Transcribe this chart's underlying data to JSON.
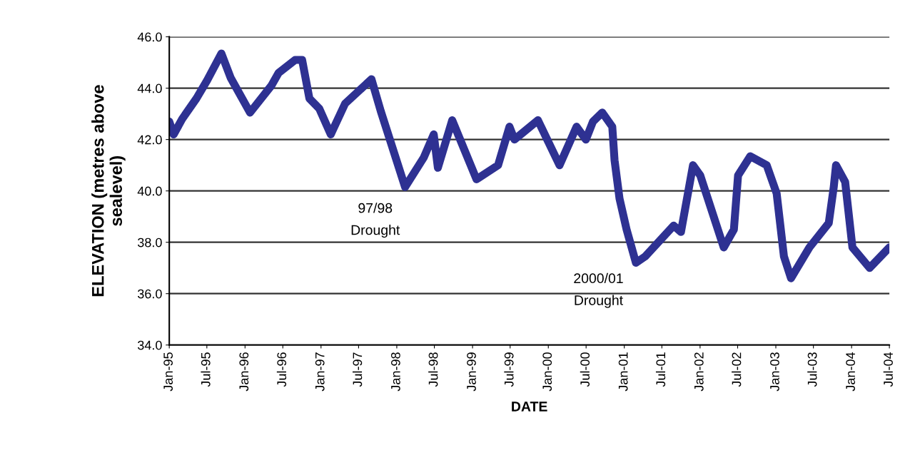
{
  "chart_data": {
    "type": "line",
    "xlabel": "DATE",
    "ylabel": "ELEVATION (metres above\nsealevel)",
    "x": [
      "1995-01-01",
      "1995-01-22",
      "1995-03-04",
      "1995-05-12",
      "1995-07-02",
      "1995-09-09",
      "1995-10-24",
      "1996-01-25",
      "1996-05-07",
      "1996-06-11",
      "1996-08-29",
      "1996-10-02",
      "1996-11-06",
      "1996-12-24",
      "1997-02-17",
      "1997-04-27",
      "1997-09-01",
      "1997-10-16",
      "1998-02-10",
      "1998-05-11",
      "1998-06-28",
      "1998-07-18",
      "1998-09-25",
      "1999-01-20",
      "1999-05-04",
      "1999-06-28",
      "1999-07-22",
      "1999-11-12",
      "2000-02-24",
      "2000-05-16",
      "2000-06-30",
      "2000-08-03",
      "2000-09-17",
      "2000-11-04",
      "2000-11-15",
      "2000-12-09",
      "2001-01-12",
      "2001-02-26",
      "2001-04-12",
      "2001-08-27",
      "2001-10-01",
      "2001-11-28",
      "2002-01-02",
      "2002-04-25",
      "2002-06-13",
      "2002-07-03",
      "2002-08-31",
      "2002-11-18",
      "2003-01-05",
      "2003-02-09",
      "2003-03-15",
      "2003-06-12",
      "2003-09-13",
      "2003-10-07",
      "2003-10-18",
      "2003-12-01",
      "2004-01-05",
      "2004-03-28",
      "2004-07-01"
    ],
    "series": [
      {
        "color": "#2e3192",
        "values": [
          42.7,
          42.2,
          42.8,
          43.6,
          44.3,
          45.35,
          44.4,
          43.05,
          44.1,
          44.6,
          45.1,
          45.1,
          43.6,
          43.2,
          42.2,
          43.4,
          44.35,
          43.1,
          40.15,
          41.3,
          42.2,
          40.9,
          42.75,
          40.45,
          41.0,
          42.5,
          42.0,
          42.75,
          41.0,
          42.5,
          42.0,
          42.7,
          43.05,
          42.5,
          41.2,
          39.7,
          38.5,
          37.2,
          37.45,
          38.65,
          38.4,
          41.0,
          40.6,
          37.8,
          38.5,
          40.6,
          41.35,
          41.0,
          39.9,
          37.45,
          36.6,
          37.8,
          38.75,
          40.15,
          41.0,
          40.35,
          37.8,
          37.0,
          37.8
        ]
      }
    ],
    "xlim": [
      "1995-01-01",
      "2004-07-01"
    ],
    "xticks": [
      {
        "value": "1995-01-01",
        "label": "Jan-95"
      },
      {
        "value": "1995-07-01",
        "label": "Jul-95"
      },
      {
        "value": "1996-01-01",
        "label": "Jan-96"
      },
      {
        "value": "1996-07-01",
        "label": "Jul-96"
      },
      {
        "value": "1997-01-01",
        "label": "Jan-97"
      },
      {
        "value": "1997-07-01",
        "label": "Jul-97"
      },
      {
        "value": "1998-01-01",
        "label": "Jan-98"
      },
      {
        "value": "1998-07-01",
        "label": "Jul-98"
      },
      {
        "value": "1999-01-01",
        "label": "Jan-99"
      },
      {
        "value": "1999-07-01",
        "label": "Jul-99"
      },
      {
        "value": "2000-01-01",
        "label": "Jan-00"
      },
      {
        "value": "2000-07-01",
        "label": "Jul-00"
      },
      {
        "value": "2001-01-01",
        "label": "Jan-01"
      },
      {
        "value": "2001-07-01",
        "label": "Jul-01"
      },
      {
        "value": "2002-01-01",
        "label": "Jan-02"
      },
      {
        "value": "2002-07-01",
        "label": "Jul-02"
      },
      {
        "value": "2003-01-01",
        "label": "Jan-03"
      },
      {
        "value": "2003-07-01",
        "label": "Jul-03"
      },
      {
        "value": "2004-01-01",
        "label": "Jan-04"
      },
      {
        "value": "2004-07-01",
        "label": "Jul-04"
      }
    ],
    "ylim": [
      34,
      46
    ],
    "yticks": [
      {
        "value": 34,
        "label": "34.0"
      },
      {
        "value": 36,
        "label": "36.0"
      },
      {
        "value": 38,
        "label": "38.0"
      },
      {
        "value": 40,
        "label": "40.0"
      },
      {
        "value": 42,
        "label": "42.0"
      },
      {
        "value": 44,
        "label": "44.0"
      },
      {
        "value": 46,
        "label": "46.0"
      }
    ],
    "grid": "y",
    "marker": "none",
    "line_style": "solid",
    "annotations": [
      "97/98\nDrought",
      "2000/01\nDrought"
    ]
  }
}
